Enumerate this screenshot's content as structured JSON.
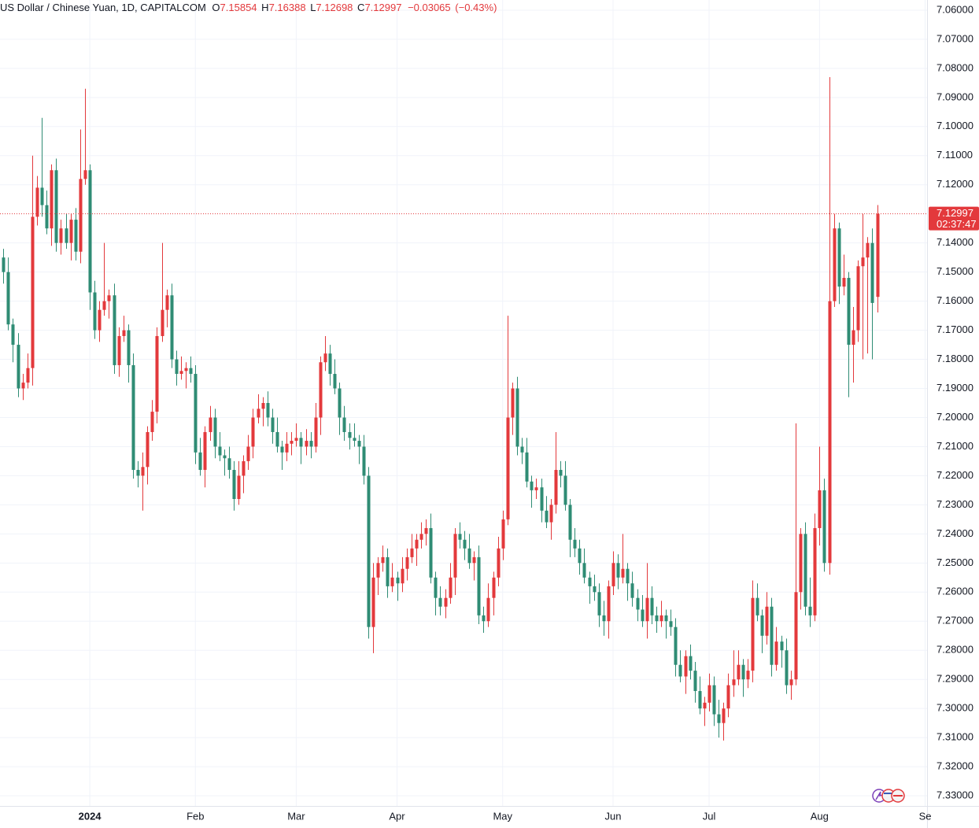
{
  "header": {
    "name": "US Dollar / Chinese Yuan, 1D, CAPITALCOM",
    "open_label": "O",
    "high_label": "H",
    "low_label": "L",
    "close_label": "C",
    "change": {
      "value": -0.03065,
      "label": "−0.03065"
    },
    "change_pct": {
      "value": -0.43,
      "label": "(−0.43%)"
    }
  },
  "chart_data": {
    "type": "candlestick",
    "up_color": "#2f8c74",
    "down_color": "#e3393c",
    "grid": true,
    "y_inverted": true,
    "ylim": [
      7.0565,
      7.3335
    ],
    "xlim": [
      -0.7,
      192.4
    ],
    "yticks": [
      {
        "value": 7.06,
        "label": "7.06000"
      },
      {
        "value": 7.07,
        "label": "7.07000"
      },
      {
        "value": 7.08,
        "label": "7.08000"
      },
      {
        "value": 7.09,
        "label": "7.09000"
      },
      {
        "value": 7.1,
        "label": "7.10000"
      },
      {
        "value": 7.11,
        "label": "7.11000"
      },
      {
        "value": 7.12,
        "label": "7.12000"
      },
      {
        "value": 7.14,
        "label": "7.14000"
      },
      {
        "value": 7.15,
        "label": "7.15000"
      },
      {
        "value": 7.16,
        "label": "7.16000"
      },
      {
        "value": 7.17,
        "label": "7.17000"
      },
      {
        "value": 7.18,
        "label": "7.18000"
      },
      {
        "value": 7.19,
        "label": "7.19000"
      },
      {
        "value": 7.2,
        "label": "7.20000"
      },
      {
        "value": 7.21,
        "label": "7.21000"
      },
      {
        "value": 7.22,
        "label": "7.22000"
      },
      {
        "value": 7.23,
        "label": "7.23000"
      },
      {
        "value": 7.24,
        "label": "7.24000"
      },
      {
        "value": 7.25,
        "label": "7.25000"
      },
      {
        "value": 7.26,
        "label": "7.26000"
      },
      {
        "value": 7.27,
        "label": "7.27000"
      },
      {
        "value": 7.28,
        "label": "7.28000"
      },
      {
        "value": 7.29,
        "label": "7.29000"
      },
      {
        "value": 7.3,
        "label": "7.30000"
      },
      {
        "value": 7.31,
        "label": "7.31000"
      },
      {
        "value": 7.32,
        "label": "7.32000"
      },
      {
        "value": 7.33,
        "label": "7.33000"
      }
    ],
    "xticks": [
      {
        "value": 18,
        "label": "2024"
      },
      {
        "value": 40,
        "label": "Feb"
      },
      {
        "value": 61,
        "label": "Mar"
      },
      {
        "value": 82,
        "label": "Apr"
      },
      {
        "value": 104,
        "label": "May"
      },
      {
        "value": 127,
        "label": "Jun"
      },
      {
        "value": 147,
        "label": "Jul"
      },
      {
        "value": 170,
        "label": "Aug"
      },
      {
        "value": 192,
        "label": "Se"
      }
    ],
    "countdown": "02:37:47",
    "open": [
      7.145,
      7.15,
      7.168,
      7.175,
      7.19,
      7.188,
      7.183,
      7.131,
      7.121,
      7.127,
      7.135,
      7.115,
      7.14,
      7.135,
      7.14,
      7.132,
      7.143,
      7.118,
      7.115,
      7.157,
      7.17,
      7.163,
      7.16,
      7.158,
      7.182,
      7.172,
      7.17,
      7.182,
      7.218,
      7.22,
      7.217,
      7.205,
      7.198,
      7.172,
      7.163,
      7.158,
      7.18,
      7.185,
      7.184,
      7.183,
      7.185,
      7.212,
      7.218,
      7.205,
      7.2,
      7.21,
      7.213,
      7.214,
      7.218,
      7.228,
      7.22,
      7.215,
      7.21,
      7.2,
      7.197,
      7.195,
      7.2,
      7.205,
      7.21,
      7.212,
      7.209,
      7.208,
      7.207,
      7.21,
      7.208,
      7.21,
      7.2,
      7.181,
      7.178,
      7.185,
      7.19,
      7.2,
      7.205,
      7.207,
      7.208,
      7.21,
      7.22,
      7.272,
      7.255,
      7.25,
      7.248,
      7.258,
      7.255,
      7.257,
      7.252,
      7.248,
      7.245,
      7.242,
      7.24,
      7.238,
      7.255,
      7.262,
      7.265,
      7.262,
      7.255,
      7.24,
      7.242,
      7.245,
      7.25,
      7.248,
      7.268,
      7.27,
      7.262,
      7.255,
      7.245,
      7.235,
      7.2,
      7.19,
      7.21,
      7.212,
      7.222,
      7.225,
      7.224,
      7.232,
      7.236,
      7.23,
      7.218,
      7.22,
      7.23,
      7.242,
      7.245,
      7.25,
      7.255,
      7.258,
      7.26,
      7.268,
      7.27,
      7.258,
      7.25,
      7.255,
      7.252,
      7.257,
      7.262,
      7.266,
      7.27,
      7.262,
      7.268,
      7.27,
      7.268,
      7.27,
      7.272,
      7.285,
      7.289,
      7.282,
      7.287,
      7.294,
      7.3,
      7.298,
      7.292,
      7.302,
      7.305,
      7.3,
      7.292,
      7.29,
      7.285,
      7.29,
      7.287,
      7.262,
      7.268,
      7.275,
      7.265,
      7.285,
      7.277,
      7.28,
      7.292,
      7.29,
      7.26,
      7.24,
      7.265,
      7.268,
      7.238,
      7.225,
      7.25,
      7.16,
      7.135,
      7.155,
      7.152,
      7.175,
      7.17,
      7.148,
      7.145,
      7.14,
      7.15854
    ],
    "high": [
      7.154,
      7.17,
      7.181,
      7.193,
      7.194,
      7.19,
      7.189,
      7.134,
      7.131,
      7.137,
      7.141,
      7.143,
      7.144,
      7.142,
      7.146,
      7.146,
      7.147,
      7.12,
      7.163,
      7.173,
      7.174,
      7.165,
      7.166,
      7.185,
      7.186,
      7.174,
      7.188,
      7.221,
      7.224,
      7.232,
      7.223,
      7.208,
      7.202,
      7.174,
      7.169,
      7.183,
      7.189,
      7.187,
      7.19,
      7.188,
      7.216,
      7.22,
      7.224,
      7.208,
      7.214,
      7.215,
      7.22,
      7.221,
      7.232,
      7.23,
      7.226,
      7.218,
      7.214,
      7.202,
      7.203,
      7.203,
      7.209,
      7.212,
      7.218,
      7.215,
      7.213,
      7.21,
      7.216,
      7.213,
      7.214,
      7.212,
      7.206,
      7.184,
      7.189,
      7.192,
      7.206,
      7.208,
      7.211,
      7.21,
      7.216,
      7.223,
      7.276,
      7.281,
      7.261,
      7.253,
      7.262,
      7.26,
      7.263,
      7.26,
      7.256,
      7.25,
      7.251,
      7.245,
      7.244,
      7.257,
      7.268,
      7.268,
      7.269,
      7.264,
      7.261,
      7.245,
      7.249,
      7.252,
      7.256,
      7.271,
      7.274,
      7.272,
      7.268,
      7.258,
      7.249,
      7.237,
      7.206,
      7.213,
      7.216,
      7.224,
      7.231,
      7.228,
      7.236,
      7.238,
      7.242,
      7.233,
      7.224,
      7.232,
      7.248,
      7.248,
      7.254,
      7.257,
      7.264,
      7.263,
      7.272,
      7.275,
      7.276,
      7.261,
      7.259,
      7.257,
      7.263,
      7.265,
      7.27,
      7.272,
      7.276,
      7.271,
      7.274,
      7.272,
      7.276,
      7.275,
      7.289,
      7.291,
      7.295,
      7.29,
      7.298,
      7.302,
      7.306,
      7.301,
      7.306,
      7.31,
      7.311,
      7.303,
      7.296,
      7.292,
      7.296,
      7.293,
      7.291,
      7.27,
      7.281,
      7.278,
      7.289,
      7.287,
      7.286,
      7.295,
      7.297,
      7.292,
      7.266,
      7.268,
      7.272,
      7.27,
      7.244,
      7.253,
      7.254,
      7.162,
      7.161,
      7.158,
      7.193,
      7.188,
      7.174,
      7.18,
      7.178,
      7.18,
      7.16388
    ],
    "low": [
      7.142,
      7.145,
      7.166,
      7.171,
      7.185,
      7.178,
      7.11,
      7.117,
      7.097,
      7.122,
      7.113,
      7.111,
      7.132,
      7.13,
      7.13,
      7.128,
      7.101,
      7.087,
      7.113,
      7.153,
      7.16,
      7.14,
      7.156,
      7.154,
      7.169,
      7.165,
      7.168,
      7.178,
      7.215,
      7.212,
      7.203,
      7.194,
      7.169,
      7.14,
      7.156,
      7.154,
      7.177,
      7.179,
      7.181,
      7.179,
      7.182,
      7.207,
      7.203,
      7.196,
      7.197,
      7.205,
      7.211,
      7.21,
      7.215,
      7.215,
      7.213,
      7.206,
      7.197,
      7.192,
      7.193,
      7.191,
      7.197,
      7.2,
      7.208,
      7.205,
      7.205,
      7.202,
      7.205,
      7.204,
      7.205,
      7.195,
      7.179,
      7.172,
      7.175,
      7.18,
      7.188,
      7.196,
      7.202,
      7.202,
      7.206,
      7.206,
      7.217,
      7.25,
      7.248,
      7.244,
      7.245,
      7.25,
      7.253,
      7.248,
      7.245,
      7.24,
      7.24,
      7.236,
      7.235,
      7.233,
      7.253,
      7.258,
      7.259,
      7.25,
      7.238,
      7.236,
      7.239,
      7.24,
      7.246,
      7.244,
      7.265,
      7.257,
      7.253,
      7.241,
      7.232,
      7.165,
      7.188,
      7.186,
      7.207,
      7.207,
      7.22,
      7.221,
      7.221,
      7.227,
      7.228,
      7.205,
      7.215,
      7.215,
      7.228,
      7.238,
      7.242,
      7.245,
      7.253,
      7.254,
      7.257,
      7.263,
      7.256,
      7.246,
      7.247,
      7.24,
      7.25,
      7.253,
      7.259,
      7.261,
      7.25,
      7.258,
      7.265,
      7.263,
      7.266,
      7.266,
      7.269,
      7.28,
      7.28,
      7.278,
      7.284,
      7.289,
      7.296,
      7.288,
      7.289,
      7.297,
      7.298,
      7.288,
      7.28,
      7.28,
      7.283,
      7.283,
      7.256,
      7.257,
      7.266,
      7.26,
      7.262,
      7.272,
      7.275,
      7.276,
      7.287,
      7.202,
      7.238,
      7.236,
      7.255,
      7.233,
      7.21,
      7.221,
      7.083,
      7.13,
      7.133,
      7.144,
      7.15,
      7.162,
      7.146,
      7.13,
      7.138,
      7.135,
      7.12698
    ],
    "close": [
      7.15,
      7.168,
      7.175,
      7.19,
      7.188,
      7.183,
      7.131,
      7.121,
      7.127,
      7.135,
      7.115,
      7.14,
      7.135,
      7.14,
      7.132,
      7.143,
      7.118,
      7.115,
      7.157,
      7.17,
      7.163,
      7.16,
      7.158,
      7.182,
      7.172,
      7.17,
      7.182,
      7.218,
      7.22,
      7.217,
      7.205,
      7.198,
      7.172,
      7.163,
      7.158,
      7.18,
      7.185,
      7.184,
      7.183,
      7.185,
      7.212,
      7.218,
      7.205,
      7.2,
      7.21,
      7.213,
      7.214,
      7.218,
      7.228,
      7.22,
      7.215,
      7.21,
      7.2,
      7.197,
      7.195,
      7.2,
      7.205,
      7.21,
      7.212,
      7.209,
      7.208,
      7.207,
      7.21,
      7.208,
      7.21,
      7.2,
      7.181,
      7.178,
      7.185,
      7.19,
      7.2,
      7.205,
      7.207,
      7.208,
      7.21,
      7.22,
      7.272,
      7.255,
      7.25,
      7.248,
      7.258,
      7.255,
      7.257,
      7.252,
      7.248,
      7.245,
      7.242,
      7.24,
      7.238,
      7.255,
      7.262,
      7.265,
      7.262,
      7.255,
      7.24,
      7.242,
      7.245,
      7.25,
      7.248,
      7.268,
      7.27,
      7.262,
      7.255,
      7.245,
      7.235,
      7.2,
      7.19,
      7.21,
      7.212,
      7.222,
      7.225,
      7.224,
      7.232,
      7.236,
      7.23,
      7.218,
      7.22,
      7.23,
      7.242,
      7.245,
      7.25,
      7.255,
      7.258,
      7.26,
      7.268,
      7.27,
      7.258,
      7.25,
      7.255,
      7.252,
      7.257,
      7.262,
      7.266,
      7.27,
      7.262,
      7.268,
      7.27,
      7.268,
      7.27,
      7.272,
      7.285,
      7.289,
      7.282,
      7.287,
      7.294,
      7.3,
      7.298,
      7.292,
      7.302,
      7.305,
      7.3,
      7.292,
      7.29,
      7.285,
      7.29,
      7.287,
      7.262,
      7.268,
      7.275,
      7.265,
      7.285,
      7.277,
      7.28,
      7.292,
      7.29,
      7.26,
      7.24,
      7.265,
      7.268,
      7.238,
      7.225,
      7.25,
      7.16,
      7.135,
      7.155,
      7.152,
      7.175,
      7.17,
      7.148,
      7.145,
      7.14,
      7.16062,
      7.12997
    ]
  }
}
